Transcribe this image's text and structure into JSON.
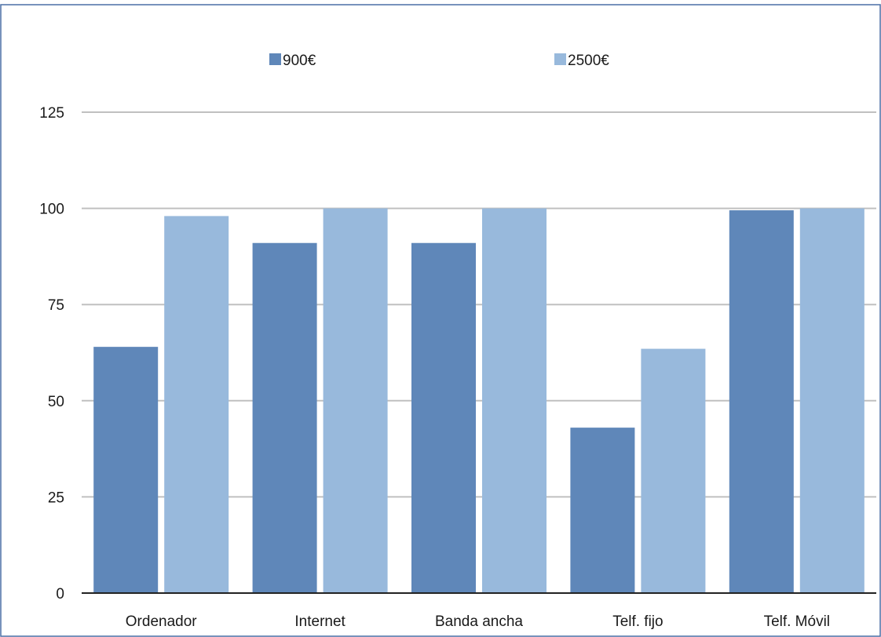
{
  "chart_data": {
    "type": "bar",
    "categories": [
      "Ordenador",
      "Internet",
      "Banda ancha",
      "Telf. fijo",
      "Telf. Móvil"
    ],
    "series": [
      {
        "name": "900€",
        "color": "#5f87b9",
        "values": [
          64,
          91,
          91,
          43,
          99.5
        ]
      },
      {
        "name": "2500€",
        "color": "#98b9dc",
        "values": [
          98,
          100,
          100,
          63.5,
          100
        ]
      }
    ],
    "y_ticks": [
      "0",
      "25",
      "50",
      "75",
      "100",
      "125"
    ],
    "ylim": [
      0,
      125
    ],
    "grid": true,
    "legend_position": "top",
    "border_color": "#4a6fa5",
    "gridline_color": "#c0c0c0",
    "axis_color": "#222222"
  }
}
